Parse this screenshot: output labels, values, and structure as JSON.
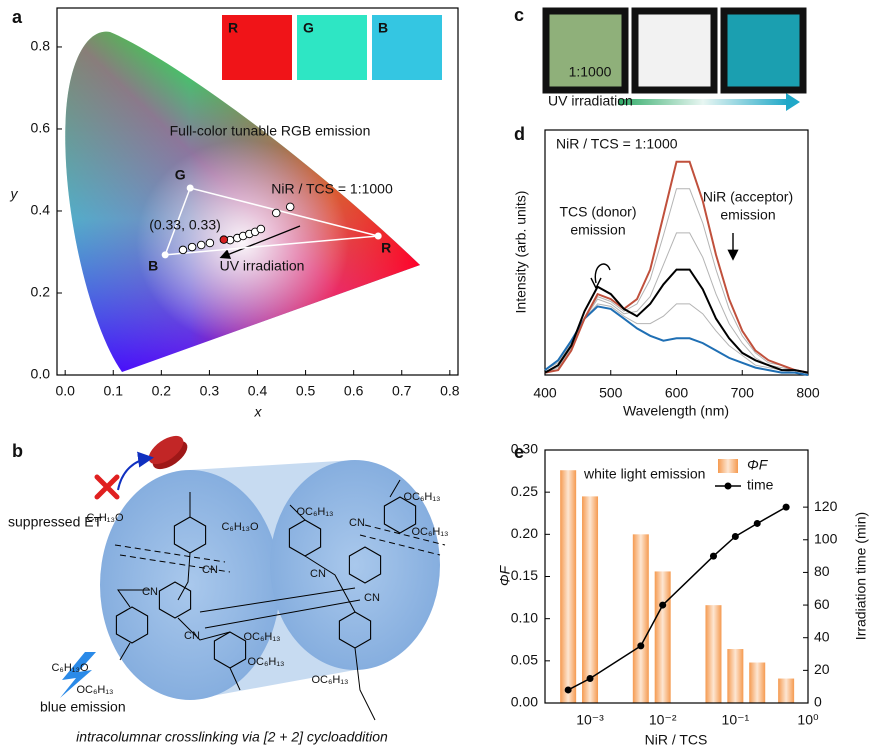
{
  "chart_data": [
    {
      "panel": "a",
      "type": "scatter",
      "xlabel": "x",
      "ylabel": "y",
      "xlim": [
        -0.017,
        0.817
      ],
      "ylim": [
        0,
        0.895
      ],
      "xticks": [
        {
          "value": 0,
          "label": "0.0"
        },
        {
          "value": 0.1,
          "label": "0.1"
        },
        {
          "value": 0.2,
          "label": "0.2"
        },
        {
          "value": 0.3,
          "label": "0.3"
        },
        {
          "value": 0.4,
          "label": "0.4"
        },
        {
          "value": 0.5,
          "label": "0.5"
        },
        {
          "value": 0.6,
          "label": "0.6"
        },
        {
          "value": 0.7,
          "label": "0.7"
        },
        {
          "value": 0.8,
          "label": "0.8"
        }
      ],
      "yticks": [
        {
          "value": 0,
          "label": "0.0"
        },
        {
          "value": 0.2,
          "label": "0.2"
        },
        {
          "value": 0.4,
          "label": "0.4"
        },
        {
          "value": 0.6,
          "label": "0.6"
        },
        {
          "value": 0.8,
          "label": "0.8"
        }
      ],
      "vertices": {
        "labels": [
          "G",
          "B",
          "R"
        ],
        "x": [
          0.26,
          0.208,
          0.651
        ],
        "y": [
          0.456,
          0.293,
          0.339
        ]
      },
      "series": [
        {
          "color": "#ffffff",
          "x": [
            0.245,
            0.264,
            0.283,
            0.301,
            0.343,
            0.358,
            0.37,
            0.383,
            0.395,
            0.407,
            0.439,
            0.468
          ],
          "values": [
            0.305,
            0.312,
            0.317,
            0.322,
            0.329,
            0.334,
            0.339,
            0.344,
            0.349,
            0.356,
            0.395,
            0.41
          ]
        },
        {
          "color": "#d62020",
          "x": [
            0.33
          ],
          "values": [
            0.33
          ]
        }
      ],
      "annotations": [
        "Full-color tunable RGB emission",
        "NiR / TCS = 1:1000",
        "(0.33, 0.33)",
        "UV irradiation"
      ],
      "inset": {
        "labels": [
          "R",
          "G",
          "B"
        ],
        "colors": [
          "#f01418",
          "#2ee6c4",
          "#34c6e2"
        ]
      }
    },
    {
      "panel": "d",
      "type": "line",
      "xlabel": "Wavelength (nm)",
      "ylabel": "Intensity (arb. units)",
      "xlim": [
        400,
        800
      ],
      "ylim": [
        0,
        1
      ],
      "xticks": [
        400,
        500,
        600,
        700,
        800
      ],
      "x": [
        400,
        420,
        440,
        460,
        480,
        500,
        520,
        540,
        560,
        580,
        600,
        620,
        640,
        660,
        680,
        700,
        720,
        740,
        760,
        780,
        800
      ],
      "series": [
        {
          "color": "#b4b4b4",
          "values": [
            0.02,
            0.05,
            0.13,
            0.23,
            0.29,
            0.28,
            0.24,
            0.21,
            0.21,
            0.24,
            0.29,
            0.29,
            0.25,
            0.18,
            0.12,
            0.08,
            0.04,
            0.03,
            0.02,
            0.01,
            0.0
          ]
        },
        {
          "color": "#b4b4b4",
          "values": [
            0.01,
            0.04,
            0.12,
            0.23,
            0.31,
            0.29,
            0.25,
            0.26,
            0.32,
            0.45,
            0.58,
            0.58,
            0.48,
            0.33,
            0.21,
            0.13,
            0.07,
            0.04,
            0.03,
            0.02,
            0.01
          ]
        },
        {
          "color": "#b4b4b4",
          "values": [
            0.01,
            0.03,
            0.11,
            0.23,
            0.32,
            0.3,
            0.26,
            0.29,
            0.39,
            0.57,
            0.76,
            0.76,
            0.62,
            0.43,
            0.27,
            0.16,
            0.09,
            0.05,
            0.04,
            0.02,
            0.01
          ]
        },
        {
          "color": "#1f6fb4",
          "values": [
            0.02,
            0.06,
            0.14,
            0.23,
            0.28,
            0.27,
            0.23,
            0.19,
            0.16,
            0.14,
            0.15,
            0.15,
            0.13,
            0.1,
            0.07,
            0.05,
            0.03,
            0.02,
            0.01,
            0.01,
            0.0
          ]
        },
        {
          "color": "#c0503c",
          "values": [
            0.01,
            0.02,
            0.1,
            0.23,
            0.33,
            0.31,
            0.27,
            0.31,
            0.43,
            0.65,
            0.87,
            0.87,
            0.71,
            0.49,
            0.31,
            0.18,
            0.1,
            0.06,
            0.04,
            0.02,
            0.01
          ]
        },
        {
          "color": "#000000",
          "values": [
            0.01,
            0.04,
            0.12,
            0.26,
            0.36,
            0.33,
            0.27,
            0.24,
            0.29,
            0.37,
            0.43,
            0.43,
            0.35,
            0.23,
            0.15,
            0.09,
            0.06,
            0.04,
            0.02,
            0.02,
            0.01
          ]
        }
      ],
      "annotations": {
        "ratio": "NiR / TCS = 1:1000",
        "donor": [
          "TCS (donor)",
          "emission"
        ],
        "acceptor": [
          "NiR (acceptor)",
          "emission"
        ]
      }
    },
    {
      "panel": "e",
      "type": "bar-line",
      "xlabel": "NiR / TCS",
      "ylabel": "ΦF",
      "y2label": "Irradiation time (min)",
      "log_x": true,
      "xlim": [
        0.00024,
        1
      ],
      "ylim": [
        0,
        0.3
      ],
      "y2lim": [
        0,
        155
      ],
      "xticks": [
        {
          "value": 0.001,
          "label": "10⁻³"
        },
        {
          "value": 0.01,
          "label": "10⁻²"
        },
        {
          "value": 0.1,
          "label": "10⁻¹"
        },
        {
          "value": 1,
          "label": "10⁰"
        }
      ],
      "yticks": [
        {
          "value": 0,
          "label": "0.00"
        },
        {
          "value": 0.05,
          "label": "0.05"
        },
        {
          "value": 0.1,
          "label": "0.10"
        },
        {
          "value": 0.15,
          "label": "0.15"
        },
        {
          "value": 0.2,
          "label": "0.20"
        },
        {
          "value": 0.25,
          "label": "0.25"
        },
        {
          "value": 0.3,
          "label": "0.30"
        }
      ],
      "y2ticks": [
        0,
        20,
        40,
        60,
        80,
        100,
        120
      ],
      "x": [
        0.0005,
        0.001,
        0.005,
        0.01,
        0.05,
        0.1,
        0.2,
        0.5
      ],
      "series": [
        {
          "name": "ΦF",
          "type": "bar",
          "color": "#f59a50",
          "values": [
            0.276,
            0.245,
            0.2,
            0.156,
            0.116,
            0.064,
            0.048,
            0.029
          ]
        },
        {
          "name": "time",
          "type": "line",
          "axis": "y2",
          "color": "#000000",
          "values": [
            8,
            15,
            35,
            60,
            90,
            102,
            110,
            120
          ]
        }
      ],
      "legend": "top-right",
      "annotation": "white light emission"
    }
  ],
  "panel_b": {
    "panel": "b",
    "et": "suppressed ET",
    "emission": "blue emission",
    "caption": "intracolumnar crosslinking via [2 + 2] cycloaddition",
    "groups": [
      "C₆H₁₃O",
      "C₆H₁₃O",
      "OC₆H₁₃",
      "OC₆H₁₃",
      "OC₆H₁₃",
      "C₆H₁₃O",
      "OC₆H₁₃",
      "OC₆H₁₃",
      "OC₆H₁₃",
      "OC₆H₁₃"
    ],
    "cn": [
      "CN",
      "CN",
      "CN",
      "CN",
      "CN",
      "CN"
    ]
  },
  "panel_c": {
    "panel": "c",
    "label": "1:1000",
    "caption": "UV irradiation",
    "colors": [
      "#8fb07a",
      "#f2f2f2",
      "#1b9fb0"
    ]
  }
}
